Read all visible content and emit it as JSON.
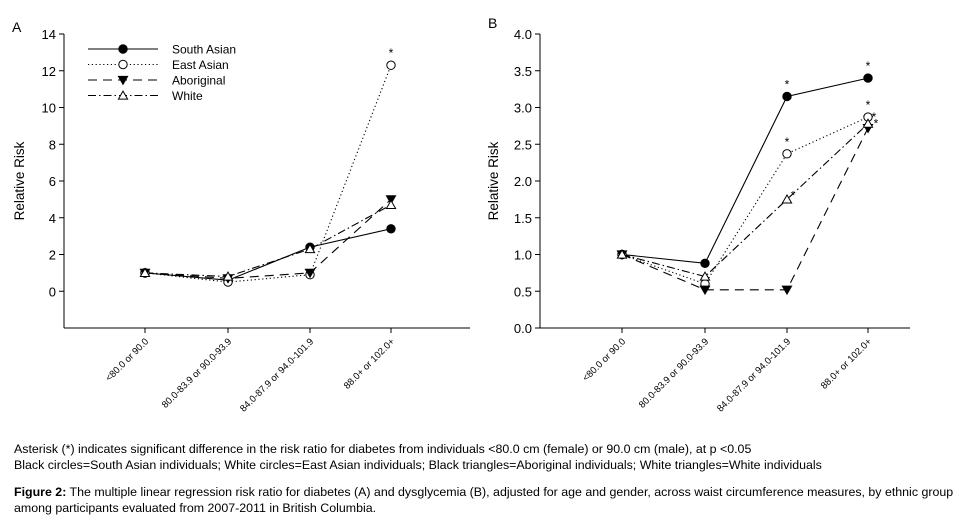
{
  "chart_data": [
    {
      "type": "line",
      "panel_label": "A",
      "ylabel": "Relative Risk",
      "xlabel": "",
      "categories": [
        "<80.0 or 90.0",
        "80.0-83.9 or 90.0-93.9",
        "84.0-87.9 or 94.0-101.9",
        "88.0+ or 102.0+"
      ],
      "ylim": [
        -2,
        14
      ],
      "yticks": [
        "0",
        "2",
        "4",
        "6",
        "8",
        "10",
        "12",
        "14"
      ],
      "legend_position": "top-left",
      "grid": false,
      "series": [
        {
          "name": "South Asian",
          "marker": "filled-circle",
          "dash": "solid",
          "values": [
            1.0,
            0.6,
            2.4,
            3.4
          ],
          "significant": [
            false,
            false,
            false,
            false
          ]
        },
        {
          "name": "East Asian",
          "marker": "open-circle",
          "dash": "dotted",
          "values": [
            1.0,
            0.5,
            0.9,
            12.3
          ],
          "significant": [
            false,
            false,
            false,
            true
          ]
        },
        {
          "name": "Aboriginal",
          "marker": "filled-triangle-down",
          "dash": "long-dash",
          "values": [
            1.0,
            0.7,
            1.0,
            5.0
          ],
          "significant": [
            false,
            false,
            false,
            false
          ]
        },
        {
          "name": "White",
          "marker": "open-triangle-up",
          "dash": "dash-dot",
          "values": [
            1.0,
            0.8,
            2.3,
            4.7
          ],
          "significant": [
            false,
            false,
            false,
            false
          ]
        }
      ],
      "significance_mark": "*"
    },
    {
      "type": "line",
      "panel_label": "B",
      "ylabel": "Relative Risk",
      "xlabel": "",
      "categories": [
        "<80.0 or 90.0",
        "80.0-83.9 or 90.0-93.9",
        "84.0-87.9 or 94.0-101.9",
        "88.0+ or 102.0+"
      ],
      "ylim": [
        0,
        4
      ],
      "yticks": [
        "0.0",
        "0.5",
        "1.0",
        "1.5",
        "2.0",
        "2.5",
        "3.0",
        "3.5",
        "4.0"
      ],
      "grid": false,
      "series": [
        {
          "name": "South Asian",
          "marker": "filled-circle",
          "dash": "solid",
          "values": [
            1.0,
            0.88,
            3.15,
            3.4
          ],
          "significant": [
            false,
            false,
            true,
            true
          ]
        },
        {
          "name": "East Asian",
          "marker": "open-circle",
          "dash": "dotted",
          "values": [
            1.0,
            0.6,
            2.37,
            2.87
          ],
          "significant": [
            false,
            false,
            true,
            true
          ]
        },
        {
          "name": "Aboriginal",
          "marker": "filled-triangle-down",
          "dash": "long-dash",
          "values": [
            1.0,
            0.52,
            0.52,
            2.72
          ],
          "significant": [
            false,
            false,
            false,
            true
          ]
        },
        {
          "name": "White",
          "marker": "open-triangle-up",
          "dash": "dash-dot",
          "values": [
            1.0,
            0.7,
            1.75,
            2.78
          ],
          "significant": [
            false,
            false,
            true,
            true
          ]
        }
      ],
      "significance_mark": "*"
    }
  ],
  "caption": {
    "note_line1": "Asterisk (*) indicates significant difference in the risk ratio for diabetes from individuals <80.0 cm (female) or 90.0 cm (male), at p <0.05",
    "note_line2": "Black circles=South Asian individuals; White circles=East Asian individuals; Black triangles=Aboriginal individuals; White triangles=White individuals",
    "figure_label": "Figure 2:",
    "figure_text": "The multiple linear regression risk ratio for diabetes (A) and dysglycemia (B), adjusted for age and gender, across waist circumference measures, by ethnic group among participants evaluated from 2007-2011 in British Columbia."
  }
}
